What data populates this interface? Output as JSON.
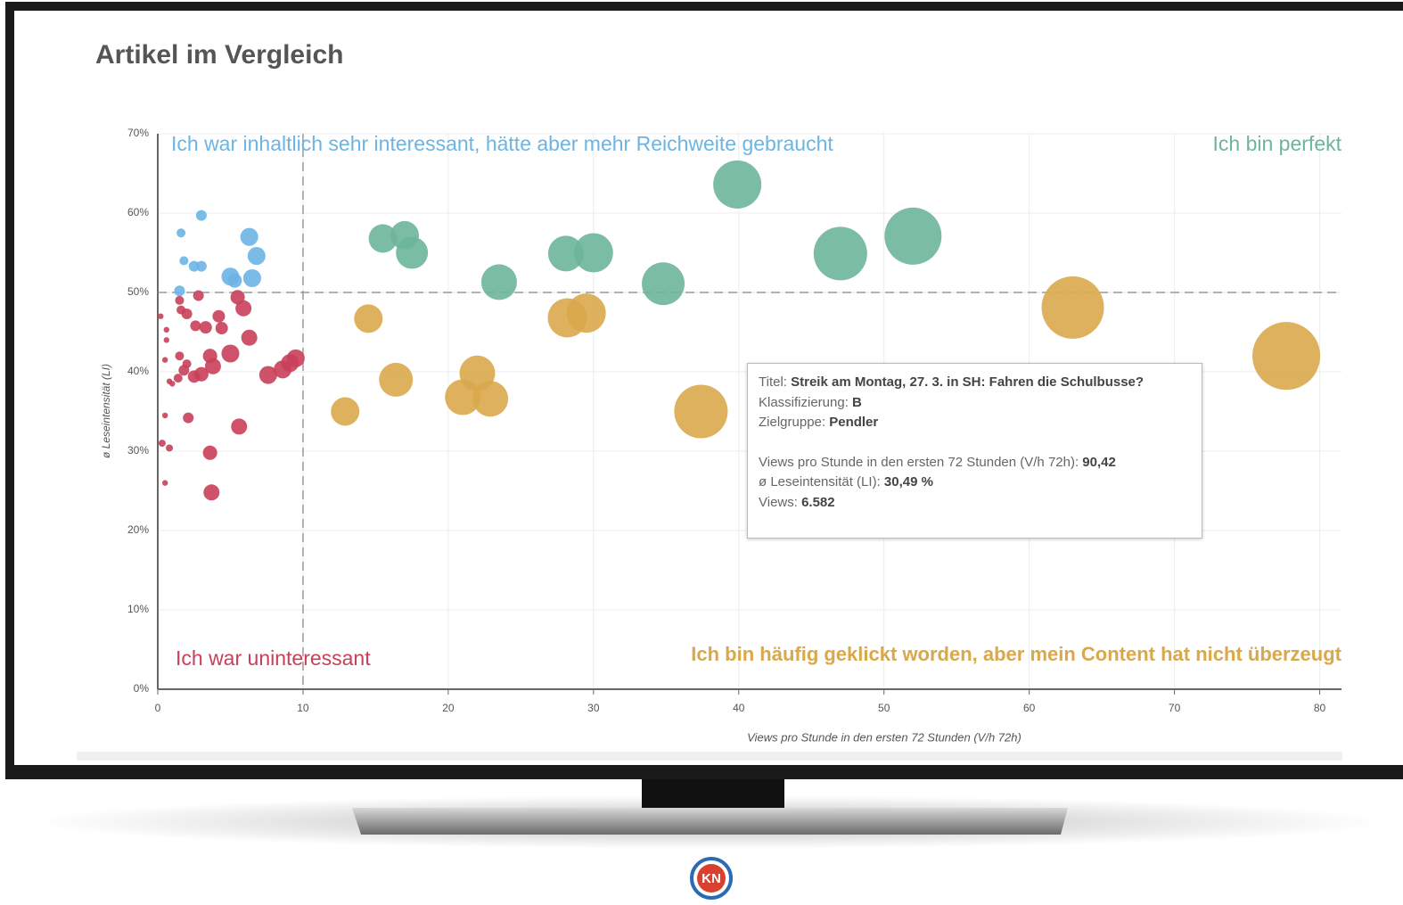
{
  "chart_data": {
    "type": "bubble",
    "title": "Artikel im Vergleich",
    "x_label": "Views pro Stunde in den ersten 72 Stunden (V/h 72h)",
    "y_label": "ø Leseintensität (LI)",
    "xlim": [
      0,
      81.5
    ],
    "ylim": [
      0,
      70
    ],
    "xticks": [
      0,
      10,
      20,
      30,
      40,
      50,
      60,
      70,
      80
    ],
    "yticks": [
      {
        "value": 0,
        "label": "0%"
      },
      {
        "value": 10,
        "label": "10%"
      },
      {
        "value": 20,
        "label": "20%"
      },
      {
        "value": 30,
        "label": "30%"
      },
      {
        "value": 40,
        "label": "40%"
      },
      {
        "value": 50,
        "label": "50%"
      },
      {
        "value": 60,
        "label": "60%"
      },
      {
        "value": 70,
        "label": "70%"
      }
    ],
    "grid": true,
    "reference_lines": {
      "x": 10,
      "y": 50
    },
    "annotations": [
      {
        "text": "Ich war inhaltlich sehr interessant, hätte aber mehr Reichweite gebraucht",
        "color": "#6cb4e4"
      },
      {
        "text": "Ich bin perfekt",
        "color": "#6db59a"
      },
      {
        "text": "Ich war uninteressant",
        "color": "#c9405a"
      },
      {
        "text": "Ich bin häufig geklickt worden, aber mein Content hat nicht überzeugt",
        "color": "#d9a84b"
      }
    ],
    "series": [
      {
        "color": "#6cb4e4",
        "x": [
          1.6,
          3,
          1.8,
          2.5,
          3,
          1.5,
          5,
          5.3,
          6.3,
          6.8,
          6.5
        ],
        "y": [
          57.5,
          59.7,
          54,
          53.3,
          53.3,
          50.2,
          52,
          51.5,
          57,
          54.6,
          51.8
        ],
        "sizes": [
          97,
          140,
          97,
          140,
          140,
          140,
          390,
          250,
          390,
          390,
          390
        ]
      },
      {
        "color": "#c9405a",
        "x": [
          0.2,
          0.6,
          0.6,
          0.5,
          0.8,
          1,
          0.5,
          0.3,
          0.8,
          0.5,
          1.5,
          1.6,
          2,
          2.8,
          2.6,
          3.3,
          4.2,
          4.4,
          5.5,
          5.9,
          6.3,
          5,
          3.6,
          3.8,
          3,
          2.5,
          1.8,
          1.5,
          2.1,
          5.6,
          3.6,
          3.7,
          7.6,
          8.6,
          9.1,
          9.5,
          1.4,
          2
        ],
        "y": [
          47,
          44,
          45.3,
          41.5,
          38.8,
          38.5,
          34.5,
          31,
          30.4,
          26,
          49,
          47.8,
          47.3,
          49.6,
          45.8,
          45.6,
          47,
          45.5,
          49.4,
          48,
          44.3,
          42.3,
          42,
          40.7,
          39.7,
          39.4,
          40.2,
          42,
          34.2,
          33.1,
          29.8,
          24.8,
          39.6,
          40.3,
          41.1,
          41.7,
          39.2,
          41
        ],
        "sizes": [
          40,
          40,
          40,
          40,
          40,
          40,
          40,
          62,
          62,
          40,
          97,
          97,
          140,
          140,
          140,
          190,
          190,
          190,
          250,
          314,
          314,
          390,
          250,
          314,
          250,
          190,
          140,
          97,
          140,
          314,
          250,
          314,
          390,
          390,
          390,
          390,
          97,
          97
        ]
      },
      {
        "color": "#6db59a",
        "x": [
          15.5,
          17,
          17.5,
          23.5,
          28.1,
          30,
          34.8,
          39.9,
          47,
          52
        ],
        "y": [
          56.8,
          57.2,
          55,
          51.3,
          54.9,
          55,
          51.1,
          63.6,
          54.9,
          57.1
        ],
        "sizes": [
          990,
          990,
          1255,
          1550,
          1550,
          1875,
          2230,
          2825,
          3490,
          3970
        ]
      },
      {
        "color": "#d9a84b",
        "x": [
          14.5,
          16.4,
          12.9,
          22,
          21,
          22.9,
          28.2,
          29.5,
          37.4,
          63,
          77.7
        ],
        "y": [
          46.7,
          39,
          35,
          39.8,
          36.8,
          36.6,
          46.8,
          47.4,
          35,
          48.1,
          42
        ],
        "sizes": [
          990,
          1400,
          990,
          1550,
          1550,
          1550,
          1875,
          1875,
          3490,
          4750,
          5600
        ]
      }
    ],
    "tooltip": [
      {
        "label": "Titel: ",
        "value": "Streik am Montag, 27. 3. in SH: Fahren die Schulbusse?"
      },
      {
        "label": "Klassifizierung: ",
        "value": "B"
      },
      {
        "label": "Zielgruppe: ",
        "value": "Pendler"
      },
      {
        "label": "Views pro Stunde in den ersten 72 Stunden (V/h 72h): ",
        "value": "90,42"
      },
      {
        "label": "ø Leseintensität (LI): ",
        "value": "30,49 %"
      },
      {
        "label": "Views: ",
        "value": "6.582"
      }
    ]
  },
  "logo": "KN"
}
